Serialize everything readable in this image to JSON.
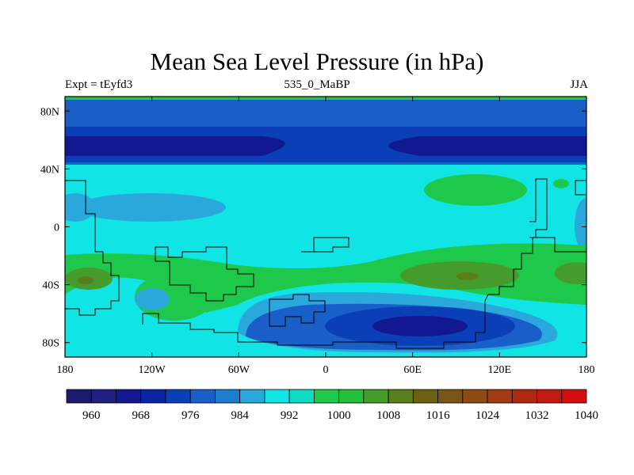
{
  "title": "Mean Sea Level Pressure (in hPa)",
  "subtitle_left": "Expt = tEyfd3",
  "subtitle_center": "535_0_MaBP",
  "subtitle_right": "JJA",
  "map": {
    "lon_range": [
      -180,
      180
    ],
    "lat_range": [
      -90,
      90
    ],
    "lon_ticks": [
      {
        "value": -180,
        "label": "180"
      },
      {
        "value": -120,
        "label": "120W"
      },
      {
        "value": -60,
        "label": "60W"
      },
      {
        "value": 0,
        "label": "0"
      },
      {
        "value": 60,
        "label": "60E"
      },
      {
        "value": 120,
        "label": "120E"
      },
      {
        "value": 180,
        "label": "180"
      }
    ],
    "lat_ticks": [
      {
        "value": 80,
        "label": "80N"
      },
      {
        "value": 40,
        "label": "40N"
      },
      {
        "value": 0,
        "label": "0"
      },
      {
        "value": -40,
        "label": "40S"
      },
      {
        "value": -80,
        "label": "80S"
      }
    ]
  },
  "colorbar": {
    "colors": [
      "#1c1a6e",
      "#1f1f84",
      "#12188f",
      "#0a25a3",
      "#0b3fb8",
      "#1a5fc8",
      "#1d7cd0",
      "#2aa8dc",
      "#10e4e4",
      "#0edcc2",
      "#1ec84a",
      "#22c03a",
      "#459c2c",
      "#5a7e1c",
      "#6a6010",
      "#7a5418",
      "#8f4a12",
      "#a23a14",
      "#b02812",
      "#c01a12",
      "#d20e10"
    ],
    "labels": [
      "960",
      "968",
      "976",
      "984",
      "992",
      "1000",
      "1008",
      "1016",
      "1024",
      "1032",
      "1040"
    ]
  }
}
